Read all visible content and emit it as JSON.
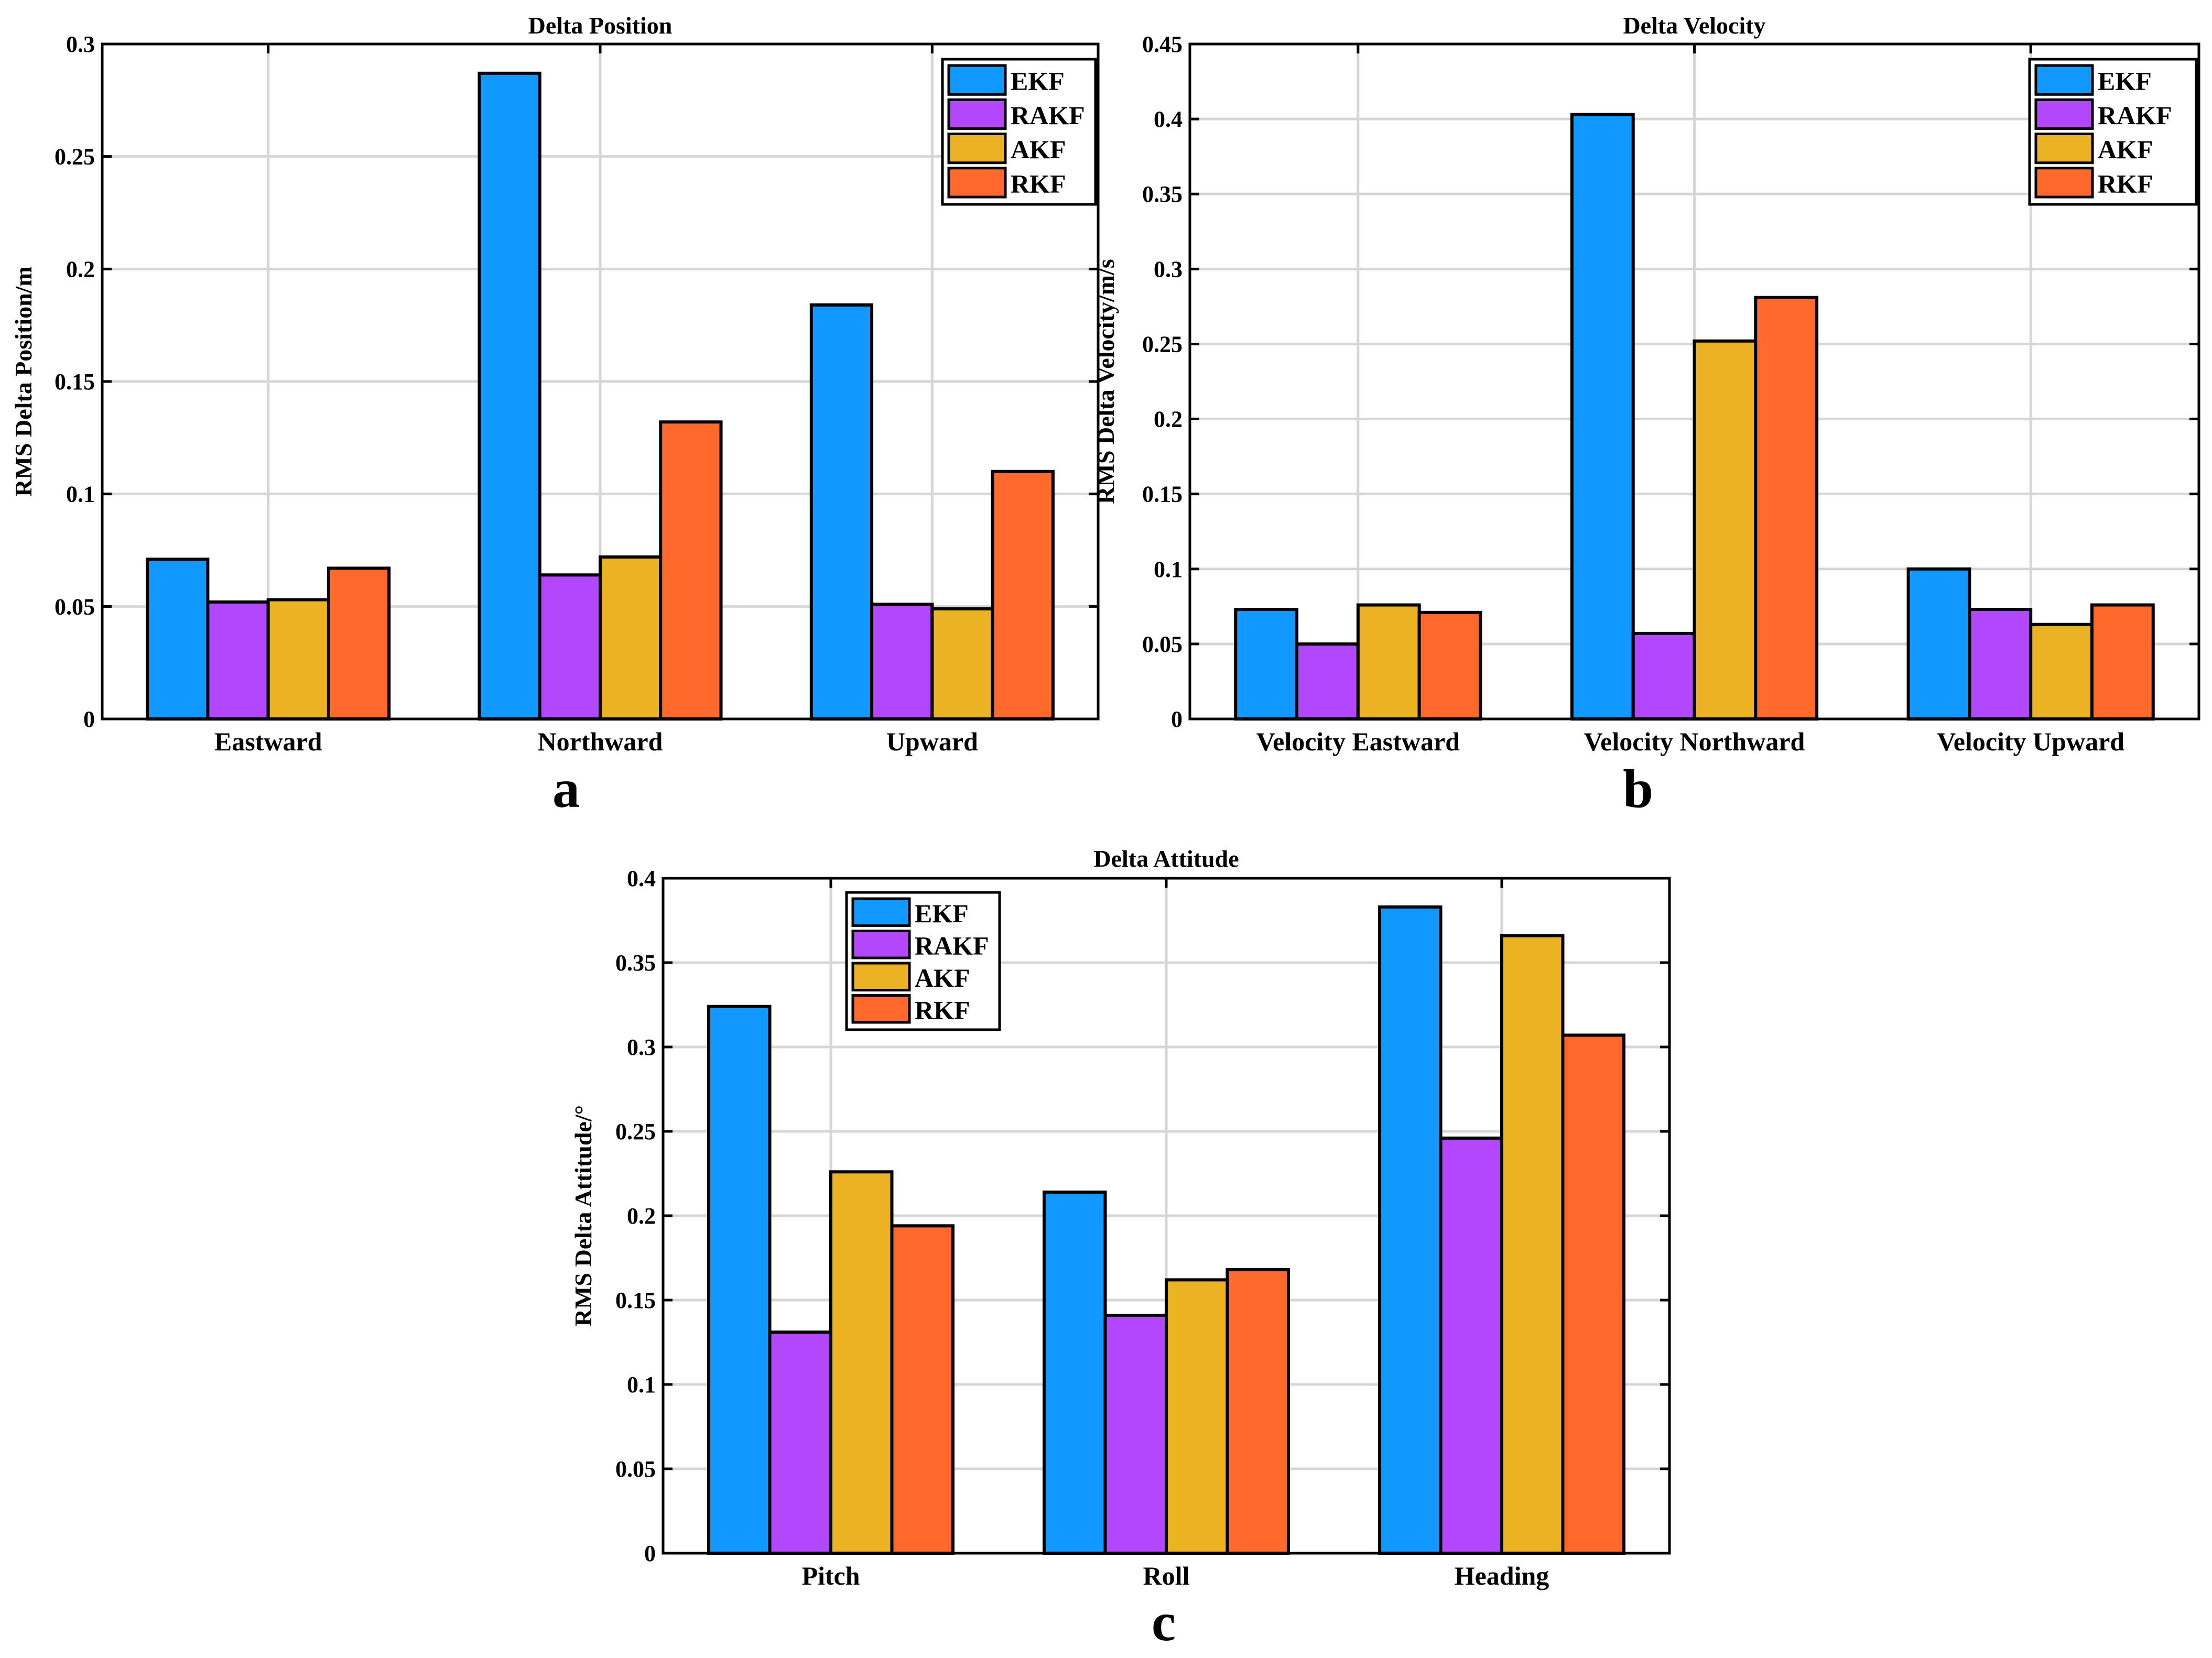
{
  "chart_data": [
    {
      "type": "bar",
      "panel_label": "a",
      "title": "Delta Position",
      "xlabel": "",
      "ylabel": "RMS Delta Position/m",
      "ylim": [
        0,
        0.3
      ],
      "yticks": [
        0,
        0.05,
        0.1,
        0.15,
        0.2,
        0.25,
        0.3
      ],
      "ytick_labels": [
        "0",
        "0.05",
        "0.1",
        "0.15",
        "0.2",
        "0.25",
        "0.3"
      ],
      "categories": [
        "Eastward",
        "Northward",
        "Upward"
      ],
      "grid": true,
      "legend_position": "top-right",
      "series": [
        {
          "name": "EKF",
          "color": "#1199FF",
          "values": [
            0.071,
            0.287,
            0.184
          ]
        },
        {
          "name": "RAKF",
          "color": "#B347FB",
          "values": [
            0.052,
            0.064,
            0.051
          ]
        },
        {
          "name": "AKF",
          "color": "#EBB224",
          "values": [
            0.053,
            0.072,
            0.049
          ]
        },
        {
          "name": "RKF",
          "color": "#FF6A2C",
          "values": [
            0.067,
            0.132,
            0.11
          ]
        }
      ]
    },
    {
      "type": "bar",
      "panel_label": "b",
      "title": "Delta Velocity",
      "xlabel": "",
      "ylabel": "RMS Delta Velocity/m/s",
      "ylim": [
        0,
        0.45
      ],
      "yticks": [
        0,
        0.05,
        0.1,
        0.15,
        0.2,
        0.25,
        0.3,
        0.35,
        0.4,
        0.45
      ],
      "ytick_labels": [
        "0",
        "0.05",
        "0.1",
        "0.15",
        "0.2",
        "0.25",
        "0.3",
        "0.35",
        "0.4",
        "0.45"
      ],
      "categories": [
        "Velocity Eastward",
        "Velocity Northward",
        "Velocity Upward"
      ],
      "grid": true,
      "legend_position": "top-right",
      "series": [
        {
          "name": "EKF",
          "color": "#1199FF",
          "values": [
            0.073,
            0.403,
            0.1
          ]
        },
        {
          "name": "RAKF",
          "color": "#B347FB",
          "values": [
            0.05,
            0.057,
            0.073
          ]
        },
        {
          "name": "AKF",
          "color": "#EBB224",
          "values": [
            0.076,
            0.252,
            0.063
          ]
        },
        {
          "name": "RKF",
          "color": "#FF6A2C",
          "values": [
            0.071,
            0.281,
            0.076
          ]
        }
      ]
    },
    {
      "type": "bar",
      "panel_label": "c",
      "title": "Delta Attitude",
      "xlabel": "",
      "ylabel": "RMS Delta Attitude/°",
      "ylim": [
        0,
        0.4
      ],
      "yticks": [
        0,
        0.05,
        0.1,
        0.15,
        0.2,
        0.25,
        0.3,
        0.35,
        0.4
      ],
      "ytick_labels": [
        "0",
        "0.05",
        "0.1",
        "0.15",
        "0.2",
        "0.25",
        "0.3",
        "0.35",
        "0.4"
      ],
      "categories": [
        "Pitch",
        "Roll",
        "Heading"
      ],
      "grid": true,
      "legend_position": "top-left",
      "series": [
        {
          "name": "EKF",
          "color": "#1199FF",
          "values": [
            0.324,
            0.214,
            0.383
          ]
        },
        {
          "name": "RAKF",
          "color": "#B347FB",
          "values": [
            0.131,
            0.141,
            0.246
          ]
        },
        {
          "name": "AKF",
          "color": "#EBB224",
          "values": [
            0.226,
            0.162,
            0.366
          ]
        },
        {
          "name": "RKF",
          "color": "#FF6A2C",
          "values": [
            0.194,
            0.168,
            0.307
          ]
        }
      ]
    }
  ]
}
